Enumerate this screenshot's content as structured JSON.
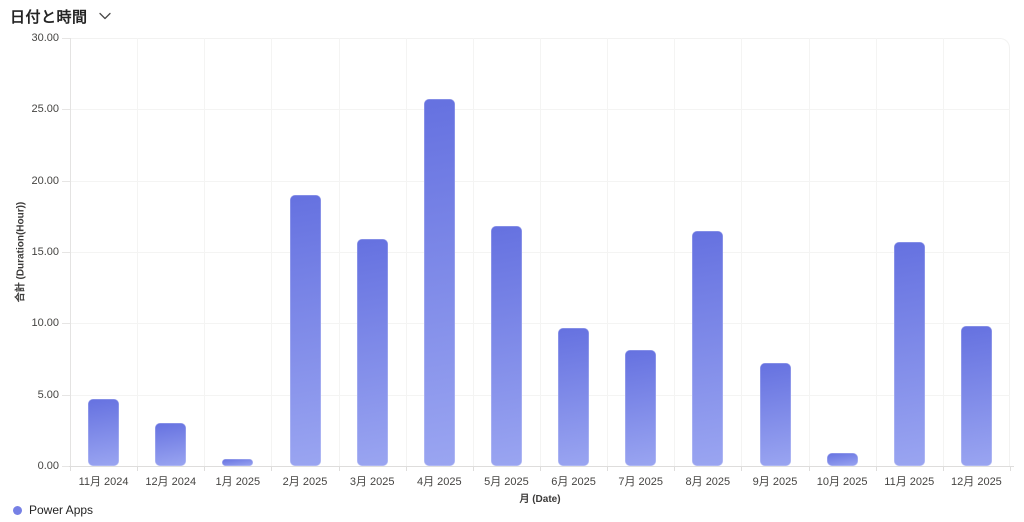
{
  "header": {
    "title": "日付と時間"
  },
  "legend": {
    "items": [
      {
        "label": "Power Apps",
        "color": "#7680e5"
      }
    ]
  },
  "chart_data": {
    "type": "bar",
    "title": "日付と時間",
    "categories": [
      "11月 2024",
      "12月 2024",
      "1月 2025",
      "2月 2025",
      "3月 2025",
      "4月 2025",
      "5月 2025",
      "6月 2025",
      "7月 2025",
      "8月 2025",
      "9月 2025",
      "10月 2025",
      "11月 2025",
      "12月 2025"
    ],
    "series": [
      {
        "name": "Power Apps",
        "values": [
          4.7,
          3.0,
          0.5,
          19.0,
          15.9,
          25.7,
          16.8,
          9.7,
          8.1,
          16.5,
          7.2,
          0.9,
          15.7,
          9.8
        ]
      }
    ],
    "xlabel": "月 (Date)",
    "ylabel": "合計 (Duration(Hour))",
    "ylim": [
      0,
      30
    ],
    "ytick_step": 5,
    "ytick_decimals": 2,
    "grid": true,
    "legend_position": "bottom-left",
    "bar_color_top": "#6571e0",
    "bar_color_bottom": "#9aa5f1"
  }
}
